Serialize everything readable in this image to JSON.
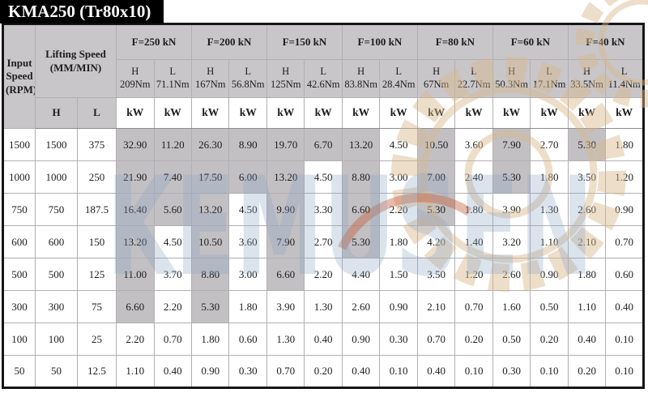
{
  "title": "KMA250 (Tr80x10)",
  "watermark": {
    "text": "KEMUSEN"
  },
  "colors": {
    "title_bg": "#000000",
    "title_fg": "#ffffff",
    "header_bg": "#c9c6c9",
    "shaded_cell_bg": "#c3c0c3",
    "watermark_blue": "#8aa5c5",
    "gear_tan": "#d8b88c",
    "gear_orange": "#c4562f"
  },
  "table": {
    "input_speed_header": "Input Speed (RPM)",
    "lifting_speed_header": "Lifting Speed (MM/MIN)",
    "high_label": "H",
    "low_label": "L",
    "unit_label": "kW",
    "shaded_min_kw": 5.3,
    "load_columns": [
      {
        "label": "F=250 kN",
        "h_torque": "209Nm",
        "l_torque": "71.1Nm"
      },
      {
        "label": "F=200 kN",
        "h_torque": "167Nm",
        "l_torque": "56.8Nm"
      },
      {
        "label": "F=150 kN",
        "h_torque": "125Nm",
        "l_torque": "42.6Nm"
      },
      {
        "label": "F=100 kN",
        "h_torque": "83.8Nm",
        "l_torque": "28.4Nm"
      },
      {
        "label": "F=80 kN",
        "h_torque": "67Nm",
        "l_torque": "22.7Nm"
      },
      {
        "label": "F=60 kN",
        "h_torque": "50.3Nm",
        "l_torque": "17.1Nm"
      },
      {
        "label": "F=40 kN",
        "h_torque": "33.5Nm",
        "l_torque": "11.4Nm"
      }
    ],
    "rows": [
      {
        "input_speed": "1500",
        "lifting_h": "1500",
        "lifting_l": "375",
        "kw": [
          "32.90",
          "11.20",
          "26.30",
          "8.90",
          "19.70",
          "6.70",
          "13.20",
          "4.50",
          "10.50",
          "3.60",
          "7.90",
          "2.70",
          "5.30",
          "1.80"
        ]
      },
      {
        "input_speed": "1000",
        "lifting_h": "1000",
        "lifting_l": "250",
        "kw": [
          "21.90",
          "7.40",
          "17.50",
          "6.00",
          "13.20",
          "4.50",
          "8.80",
          "3.00",
          "7.00",
          "2.40",
          "5.30",
          "1.80",
          "3.50",
          "1.20"
        ]
      },
      {
        "input_speed": "750",
        "lifting_h": "750",
        "lifting_l": "187.5",
        "kw": [
          "16.40",
          "5.60",
          "13.20",
          "4.50",
          "9.90",
          "3.30",
          "6.60",
          "2.20",
          "5.30",
          "1.80",
          "3.90",
          "1.30",
          "2.60",
          "0.90"
        ]
      },
      {
        "input_speed": "600",
        "lifting_h": "600",
        "lifting_l": "150",
        "kw": [
          "13.20",
          "4.50",
          "10.50",
          "3.60",
          "7.90",
          "2.70",
          "5.30",
          "1.80",
          "4.20",
          "1.40",
          "3.20",
          "1.10",
          "2.10",
          "0.70"
        ]
      },
      {
        "input_speed": "500",
        "lifting_h": "500",
        "lifting_l": "125",
        "kw": [
          "11.00",
          "3.70",
          "8.80",
          "3.00",
          "6.60",
          "2.20",
          "4.40",
          "1.50",
          "3.50",
          "1.20",
          "2.60",
          "0.90",
          "1.80",
          "0.60"
        ]
      },
      {
        "input_speed": "300",
        "lifting_h": "300",
        "lifting_l": "75",
        "kw": [
          "6.60",
          "2.20",
          "5.30",
          "1.80",
          "3.90",
          "1.30",
          "2.60",
          "0.90",
          "2.10",
          "0.70",
          "1.60",
          "0.50",
          "1.10",
          "0.40"
        ]
      },
      {
        "input_speed": "100",
        "lifting_h": "100",
        "lifting_l": "25",
        "kw": [
          "2.20",
          "0.70",
          "1.80",
          "0.60",
          "1.30",
          "0.40",
          "0.90",
          "0.30",
          "0.70",
          "0.20",
          "0.50",
          "0.20",
          "0.40",
          "0.10"
        ]
      },
      {
        "input_speed": "50",
        "lifting_h": "50",
        "lifting_l": "12.5",
        "kw": [
          "1.10",
          "0.40",
          "0.90",
          "0.30",
          "0.70",
          "0.20",
          "0.40",
          "0.10",
          "0.40",
          "0.10",
          "0.30",
          "0.10",
          "0.20",
          "0.10"
        ]
      }
    ]
  }
}
